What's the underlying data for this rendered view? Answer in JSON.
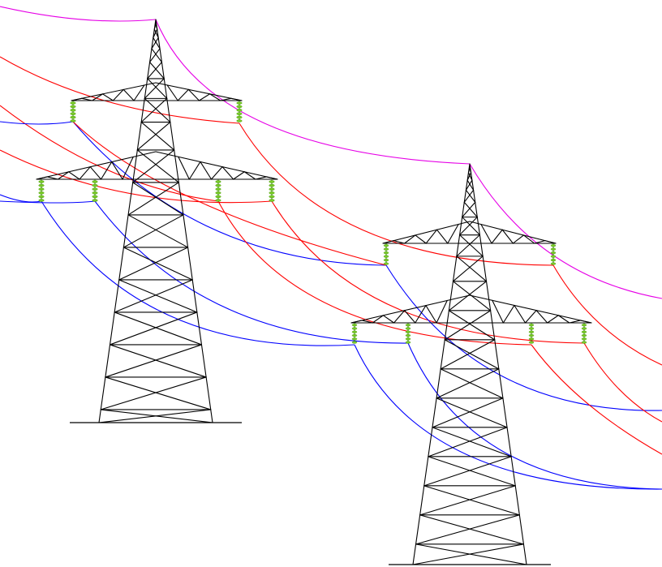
{
  "colors": {
    "background": "#ffffff",
    "tower": "#000000",
    "ground_wire": "#e600e6",
    "phase_red": "#ff0000",
    "phase_blue": "#0000ff",
    "insulator": "#7acc29"
  },
  "towers": [
    {
      "name": "power-pylon-left",
      "interactable": false
    },
    {
      "name": "power-pylon-right",
      "interactable": false
    }
  ],
  "conductors": {
    "ground_wire_color": "magenta",
    "phase_colors": [
      "red",
      "blue"
    ]
  }
}
